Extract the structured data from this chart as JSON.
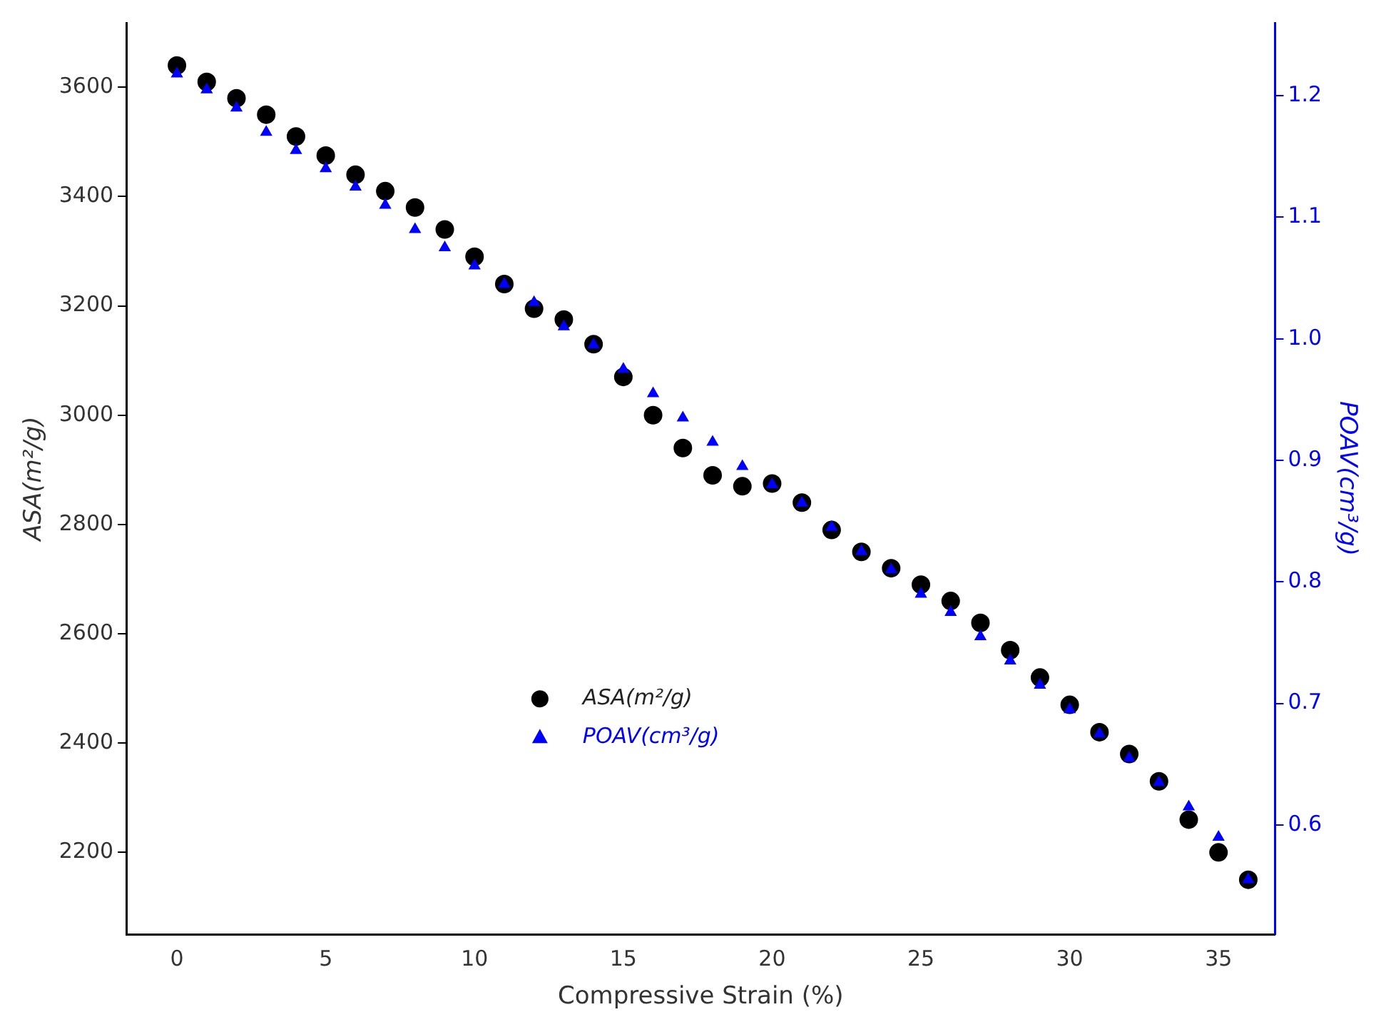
{
  "chart_data": {
    "type": "scatter",
    "xlabel": "Compressive Strain (%)",
    "ylabel": "ASA(m²/g)",
    "y2label": "POAV(cm³/g)",
    "x": [
      0,
      1,
      2,
      3,
      4,
      5,
      6,
      7,
      8,
      9,
      10,
      11,
      12,
      13,
      14,
      15,
      16,
      17,
      18,
      19,
      20,
      21,
      22,
      23,
      24,
      25,
      26,
      27,
      28,
      29,
      30,
      31,
      32,
      33,
      34,
      35,
      36
    ],
    "series": [
      {
        "name": "ASA(m²/g)",
        "color": "#000000",
        "marker": "circle",
        "values": [
          3640,
          3610,
          3580,
          3550,
          3510,
          3475,
          3440,
          3410,
          3380,
          3340,
          3290,
          3240,
          3195,
          3175,
          3130,
          3070,
          3000,
          2940,
          2890,
          2870,
          2875,
          2840,
          2790,
          2750,
          2720,
          2690,
          2660,
          2620,
          2570,
          2520,
          2470,
          2420,
          2380,
          2330,
          2260,
          2200,
          2150
        ]
      },
      {
        "name": "POAV(cm³/g)",
        "color": "#0000ff",
        "marker": "triangle",
        "axis": "y2",
        "values": [
          1.218,
          1.205,
          1.19,
          1.17,
          1.155,
          1.14,
          1.125,
          1.11,
          1.09,
          1.075,
          1.06,
          1.045,
          1.03,
          1.01,
          0.995,
          0.975,
          0.955,
          0.935,
          0.915,
          0.895,
          0.88,
          0.865,
          0.845,
          0.825,
          0.81,
          0.79,
          0.775,
          0.755,
          0.735,
          0.715,
          0.695,
          0.675,
          0.655,
          0.635,
          0.615,
          0.59,
          0.555
        ]
      }
    ],
    "xlim": [
      -1.7,
      36.9
    ],
    "xticks": [
      0,
      5,
      10,
      15,
      20,
      25,
      30,
      35
    ],
    "ylim": [
      2050,
      3718
    ],
    "yticks": [
      2200,
      2400,
      2600,
      2800,
      3000,
      3200,
      3400,
      3600
    ],
    "y2lim": [
      0.51,
      1.26
    ],
    "y2ticks": [
      0.6,
      0.7,
      0.8,
      0.9,
      {
        "value": 1,
        "label": "1.0"
      },
      1.1,
      1.2
    ],
    "grid": false,
    "legend": "bottom"
  }
}
